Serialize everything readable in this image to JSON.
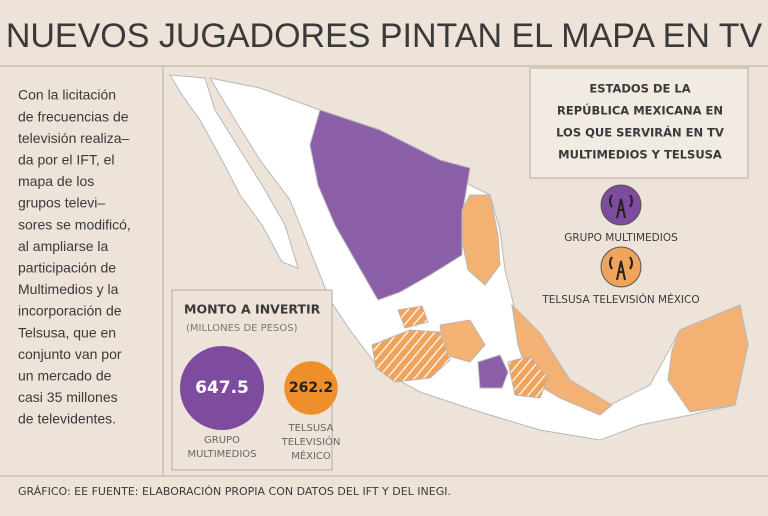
{
  "title": "NUEVOS JUGADORES PINTAN EL MAPA EN TV",
  "intro": {
    "lines": [
      "Con la licitación",
      "de frecuencias de",
      "televisión realiza–",
      "da por el IFT, el",
      "mapa de los",
      "grupos televi–",
      "sores se modificó,",
      "al ampliarse la",
      "participación de",
      "Multimedios y la",
      "incorporación de",
      "Telsusa, que en",
      "conjunto van por",
      "un mercado de",
      "casi 35 millones",
      "de televidentes."
    ]
  },
  "legend": {
    "title_lines": [
      "ESTADOS DE LA",
      "REPÚBLICA MEXICANA EN",
      "LOS QUE SERVIRÁN EN TV",
      "MULTIMEDIOS Y TELSUSA"
    ],
    "items": [
      {
        "label": "GRUPO MULTIMEDIOS",
        "color": "#7e4c9e"
      },
      {
        "label": "TELSUSA TELEVISIÓN MÉXICO",
        "color": "#f0a35a"
      }
    ]
  },
  "investment": {
    "title": "MONTO A INVERTIR",
    "unit": "(MILLONES DE PESOS)",
    "items": [
      {
        "label_lines": [
          "GRUPO",
          "MULTIMEDIOS"
        ],
        "value": 647.5,
        "color": "#7e4c9e"
      },
      {
        "label_lines": [
          "TELSUSA",
          "TELEVISIÓN",
          "MÉXICO"
        ],
        "value": 262.2,
        "color": "#ee8f2c"
      }
    ]
  },
  "source": "GRÁFICO: EE FUENTE: ELABORACIÓN PROPIA CON DATOS DEL IFT Y DEL INEGI."
}
